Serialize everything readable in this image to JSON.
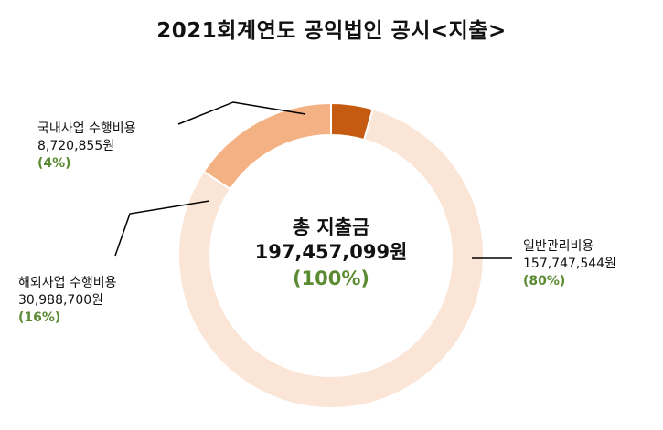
{
  "chart_data": {
    "type": "pie",
    "variant": "donut",
    "title": "2021회계연도 공익법인 공시<지출>",
    "center": {
      "line1": "총 지출금",
      "line2": "197,457,099원",
      "line3": "(100%)"
    },
    "slices": [
      {
        "label": "국내사업 수행비용",
        "amount": "8,720,855원",
        "pct": "(4%)",
        "value": 8720855,
        "color": "#c55a11"
      },
      {
        "label": "일반관리비용",
        "amount": "157,747,544원",
        "pct": "(80%)",
        "value": 157747544,
        "color": "#fbe5d6"
      },
      {
        "label": "해외사업 수행비용",
        "amount": "30,988,700원",
        "pct": "(16%)",
        "value": 30988700,
        "color": "#f4b183"
      }
    ],
    "leader_color": "#000000",
    "percent_color": "#5a8a32"
  }
}
